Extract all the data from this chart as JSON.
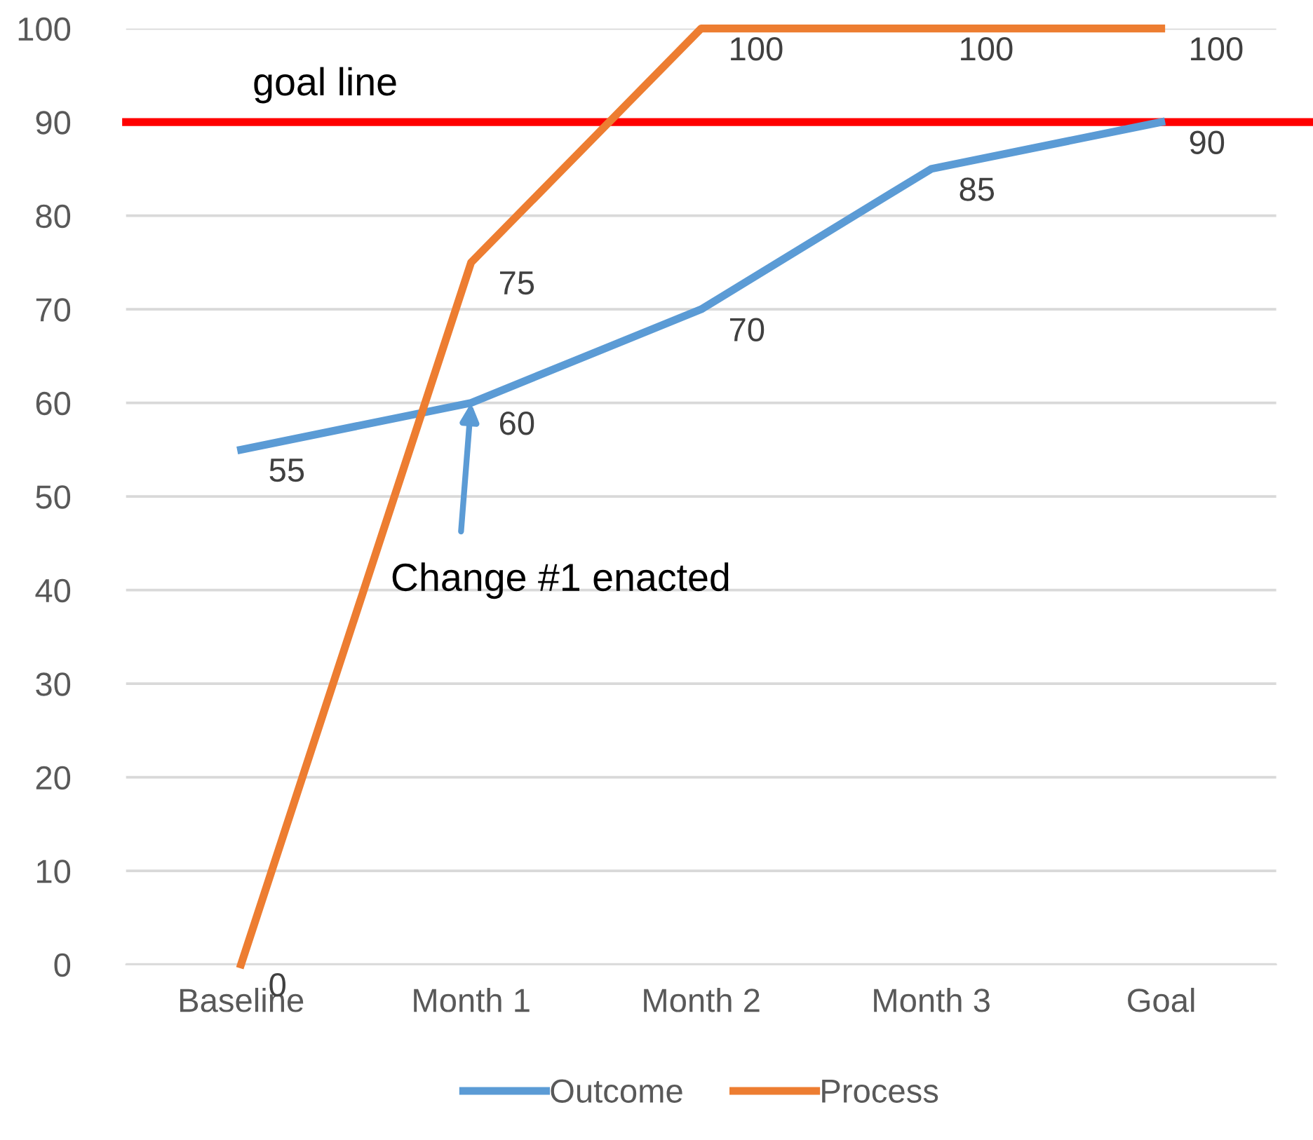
{
  "chart_data": {
    "type": "line",
    "categories": [
      "Baseline",
      "Month 1",
      "Month 2",
      "Month 3",
      "Goal"
    ],
    "series": [
      {
        "name": "Outcome",
        "color": "#5b9bd5",
        "values": [
          55,
          60,
          70,
          85,
          90
        ]
      },
      {
        "name": "Process",
        "color": "#ed7d31",
        "values": [
          0,
          75,
          100,
          100,
          100
        ]
      }
    ],
    "ylim": [
      0,
      100
    ],
    "yticks": [
      0,
      10,
      20,
      30,
      40,
      50,
      60,
      70,
      80,
      90,
      100
    ],
    "grid": "y",
    "legend": "bottom",
    "data_labels": true,
    "marker": "none",
    "line_style": "solid",
    "ref_lines": [
      {
        "axis": "y",
        "value": 90,
        "label": "goal line",
        "color": "#ff0000",
        "line_style": "solid"
      }
    ],
    "annotations": [
      {
        "text": "Change #1 enacted",
        "x": "Month 1",
        "y": 60
      }
    ]
  }
}
